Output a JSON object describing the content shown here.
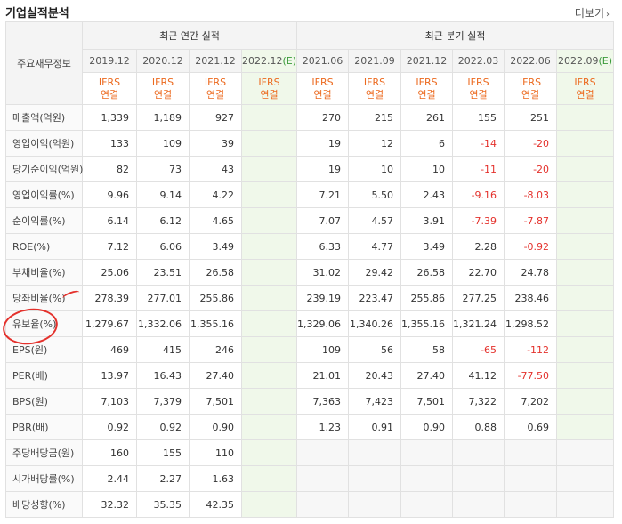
{
  "header": {
    "title": "기업실적분석",
    "more_label": "더보기",
    "more_icon": "chevron-right-icon"
  },
  "table": {
    "row_header_label": "주요재무정보",
    "group_annual": "최근 연간 실적",
    "group_quarter": "최근 분기 실적",
    "periods": [
      "2019.12",
      "2020.12",
      "2021.12",
      "2022.12(E)",
      "2021.06",
      "2021.09",
      "2021.12",
      "2022.03",
      "2022.06",
      "2022.09(E)"
    ],
    "standard_line1": "IFRS",
    "standard_line2": "연결",
    "rows": [
      {
        "label": "매출액(억원)",
        "values": [
          "1,339",
          "1,189",
          "927",
          "",
          "270",
          "215",
          "261",
          "155",
          "251",
          ""
        ]
      },
      {
        "label": "영업이익(억원)",
        "values": [
          "133",
          "109",
          "39",
          "",
          "19",
          "12",
          "6",
          "-14",
          "-20",
          ""
        ]
      },
      {
        "label": "당기순이익(억원)",
        "values": [
          "82",
          "73",
          "43",
          "",
          "19",
          "10",
          "10",
          "-11",
          "-20",
          ""
        ]
      },
      {
        "label": "영업이익률(%)",
        "values": [
          "9.96",
          "9.14",
          "4.22",
          "",
          "7.21",
          "5.50",
          "2.43",
          "-9.16",
          "-8.03",
          ""
        ]
      },
      {
        "label": "순이익률(%)",
        "values": [
          "6.14",
          "6.12",
          "4.65",
          "",
          "7.07",
          "4.57",
          "3.91",
          "-7.39",
          "-7.87",
          ""
        ]
      },
      {
        "label": "ROE(%)",
        "values": [
          "7.12",
          "6.06",
          "3.49",
          "",
          "6.33",
          "4.77",
          "3.49",
          "2.28",
          "-0.92",
          ""
        ]
      },
      {
        "label": "부채비율(%)",
        "values": [
          "25.06",
          "23.51",
          "26.58",
          "",
          "31.02",
          "29.42",
          "26.58",
          "22.70",
          "24.78",
          ""
        ]
      },
      {
        "label": "당좌비율(%)",
        "values": [
          "278.39",
          "277.01",
          "255.86",
          "",
          "239.19",
          "223.47",
          "255.86",
          "277.25",
          "238.46",
          ""
        ]
      },
      {
        "label": "유보율(%)",
        "values": [
          "1,279.67",
          "1,332.06",
          "1,355.16",
          "",
          "1,329.06",
          "1,340.26",
          "1,355.16",
          "1,321.24",
          "1,298.52",
          ""
        ]
      },
      {
        "label": "EPS(원)",
        "values": [
          "469",
          "415",
          "246",
          "",
          "109",
          "56",
          "58",
          "-65",
          "-112",
          ""
        ]
      },
      {
        "label": "PER(배)",
        "values": [
          "13.97",
          "16.43",
          "27.40",
          "",
          "21.01",
          "20.43",
          "27.40",
          "41.12",
          "-77.50",
          ""
        ]
      },
      {
        "label": "BPS(원)",
        "values": [
          "7,103",
          "7,379",
          "7,501",
          "",
          "7,363",
          "7,423",
          "7,501",
          "7,322",
          "7,202",
          ""
        ]
      },
      {
        "label": "PBR(배)",
        "values": [
          "0.92",
          "0.92",
          "0.90",
          "",
          "1.23",
          "0.91",
          "0.90",
          "0.88",
          "0.69",
          ""
        ]
      },
      {
        "label": "주당배당금(원)",
        "values": [
          "160",
          "155",
          "110",
          "",
          "",
          "",
          "",
          "",
          "",
          ""
        ]
      },
      {
        "label": "시가배당률(%)",
        "values": [
          "2.44",
          "2.27",
          "1.63",
          "",
          "",
          "",
          "",
          "",
          "",
          ""
        ]
      },
      {
        "label": "배당성향(%)",
        "values": [
          "32.32",
          "35.35",
          "42.35",
          "",
          "",
          "",
          "",
          "",
          "",
          ""
        ]
      }
    ]
  },
  "colors": {
    "negative": "#e4312c",
    "accent_orange": "#ec6a1f",
    "estimate_bg": "#f0f8ea",
    "annotation": "#e4312c"
  }
}
